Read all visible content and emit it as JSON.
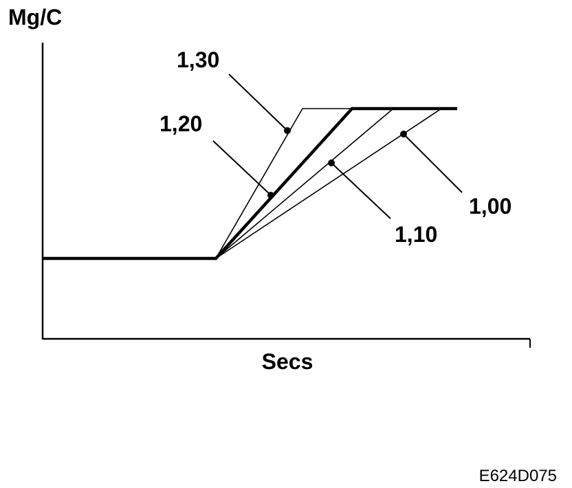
{
  "axes": {
    "y_label": "Mg/C",
    "x_label": "Secs"
  },
  "curves": [
    {
      "label": "1,30"
    },
    {
      "label": "1,20"
    },
    {
      "label": "1,10"
    },
    {
      "label": "1,00"
    }
  ],
  "figure_code": "E624D075"
}
